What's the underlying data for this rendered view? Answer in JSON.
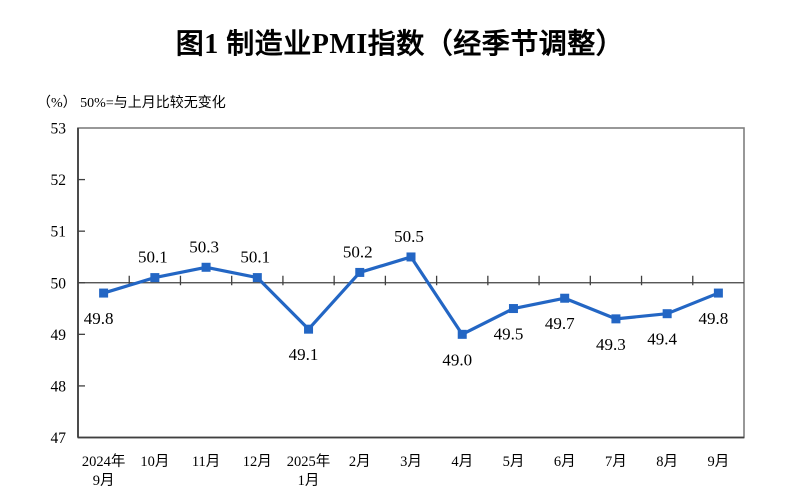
{
  "chart_data": {
    "type": "line",
    "title": "图1 制造业PMI指数（经季节调整）",
    "unit_note": "（%） 50%=与上月比较无变化",
    "categories": [
      [
        "2024年",
        "9月"
      ],
      [
        "10月"
      ],
      [
        "11月"
      ],
      [
        "12月"
      ],
      [
        "2025年",
        "1月"
      ],
      [
        "2月"
      ],
      [
        "3月"
      ],
      [
        "4月"
      ],
      [
        "5月"
      ],
      [
        "6月"
      ],
      [
        "7月"
      ],
      [
        "8月"
      ],
      [
        "9月"
      ]
    ],
    "series": [
      {
        "name": "制造业PMI",
        "values": [
          49.8,
          50.1,
          50.3,
          50.1,
          49.1,
          50.2,
          50.5,
          49.0,
          49.5,
          49.7,
          49.3,
          49.4,
          49.8
        ],
        "data_labels": [
          "49.8",
          "50.1",
          "50.3",
          "50.1",
          "49.1",
          "50.2",
          "50.5",
          "49.0",
          "49.5",
          "49.7",
          "49.3",
          "49.4",
          "49.8"
        ],
        "label_positions": [
          "below",
          "above",
          "above",
          "above",
          "below",
          "above",
          "above",
          "below",
          "below",
          "below",
          "below",
          "below",
          "below"
        ]
      }
    ],
    "xlabel": "",
    "ylabel": "",
    "ylim": [
      47,
      53
    ],
    "yticks": [
      47,
      48,
      49,
      50,
      51,
      52,
      53
    ],
    "ytick_labels": [
      "47",
      "48",
      "49",
      "50",
      "51",
      "52",
      "53"
    ],
    "reference_line": 50,
    "grid": false,
    "legend": "none",
    "marker": "square",
    "colors": {
      "line": "#2366C4",
      "marker": "#2366C4",
      "reference_line": "#404040",
      "axis": "#404040",
      "plot_border": "#7f7f7f",
      "text": "#000000"
    }
  }
}
